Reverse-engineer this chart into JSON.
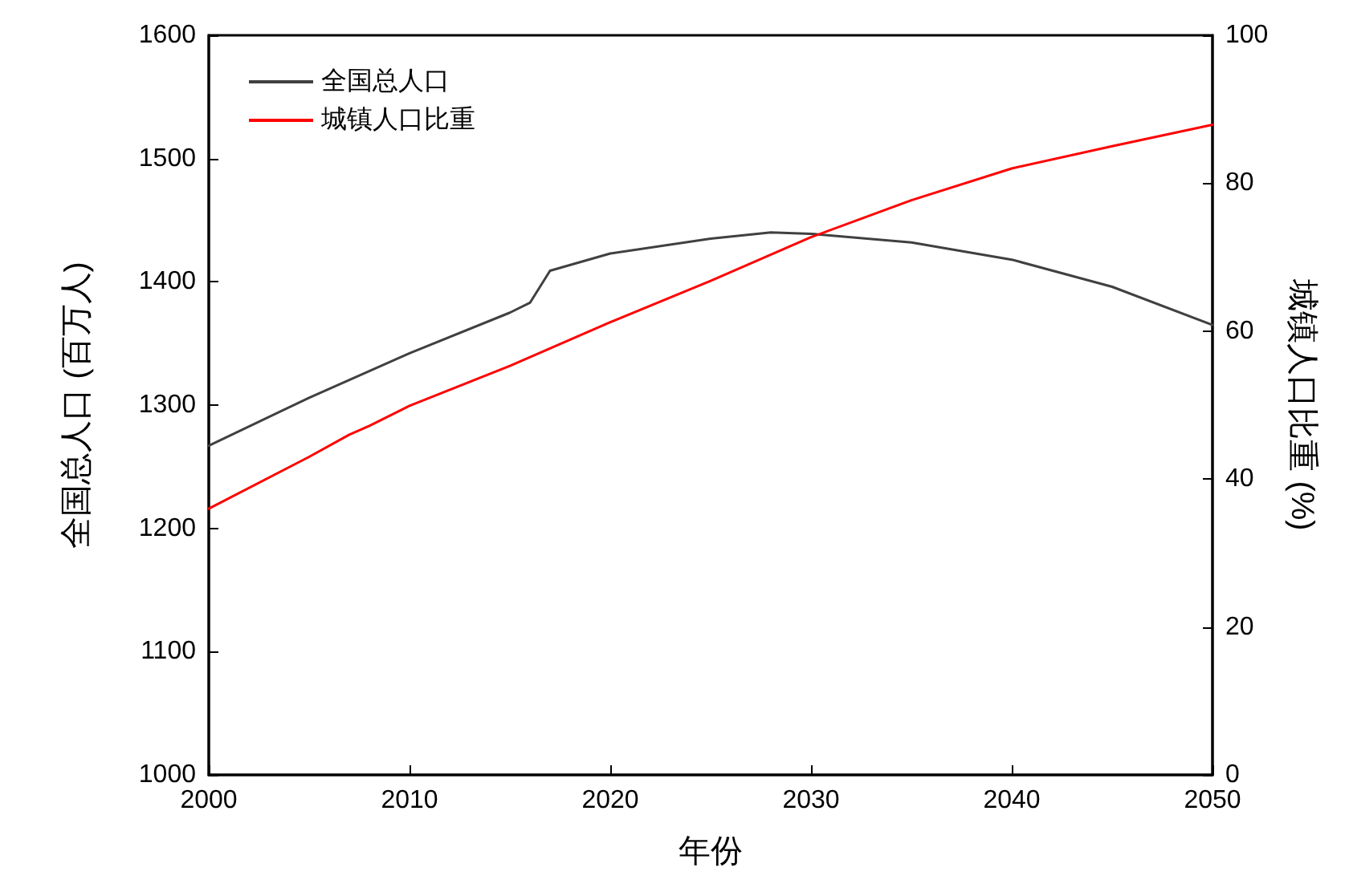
{
  "chart_data": {
    "type": "line",
    "xlabel": "年份",
    "ylabel": "全国总人口 (百万人)",
    "y2label": "城镇人口比重 (%)",
    "xlim": [
      2000,
      2050
    ],
    "xticks": [
      2000,
      2010,
      2020,
      2030,
      2040,
      2050
    ],
    "ylim": [
      1000,
      1600
    ],
    "yticks": [
      1000,
      1100,
      1200,
      1300,
      1400,
      1500,
      1600
    ],
    "y2lim": [
      0,
      100
    ],
    "y2ticks": [
      0,
      20,
      40,
      60,
      80,
      100
    ],
    "grid": false,
    "legend": "top left",
    "marker": "none",
    "line_style": "solid",
    "series": [
      {
        "name": "全国总人口",
        "color": "#404040",
        "x": [
          2000,
          2005,
          2010,
          2015,
          2016,
          2017,
          2020,
          2025,
          2028,
          2030,
          2035,
          2040,
          2045,
          2050
        ],
        "values": [
          1267,
          1306,
          1342,
          1375,
          1383,
          1409,
          1423,
          1435,
          1440,
          1439,
          1432,
          1418,
          1396,
          1365
        ]
      },
      {
        "name": "城镇人口比重",
        "color": "#ff0000",
        "axis": "y2",
        "x": [
          2000,
          2005,
          2007,
          2008,
          2010,
          2015,
          2020,
          2025,
          2030,
          2035,
          2040,
          2045,
          2050
        ],
        "values": [
          36.0,
          43.0,
          46.0,
          47.2,
          49.9,
          55.3,
          61.2,
          66.8,
          72.7,
          77.7,
          82.0,
          85.0,
          87.9
        ]
      }
    ]
  }
}
